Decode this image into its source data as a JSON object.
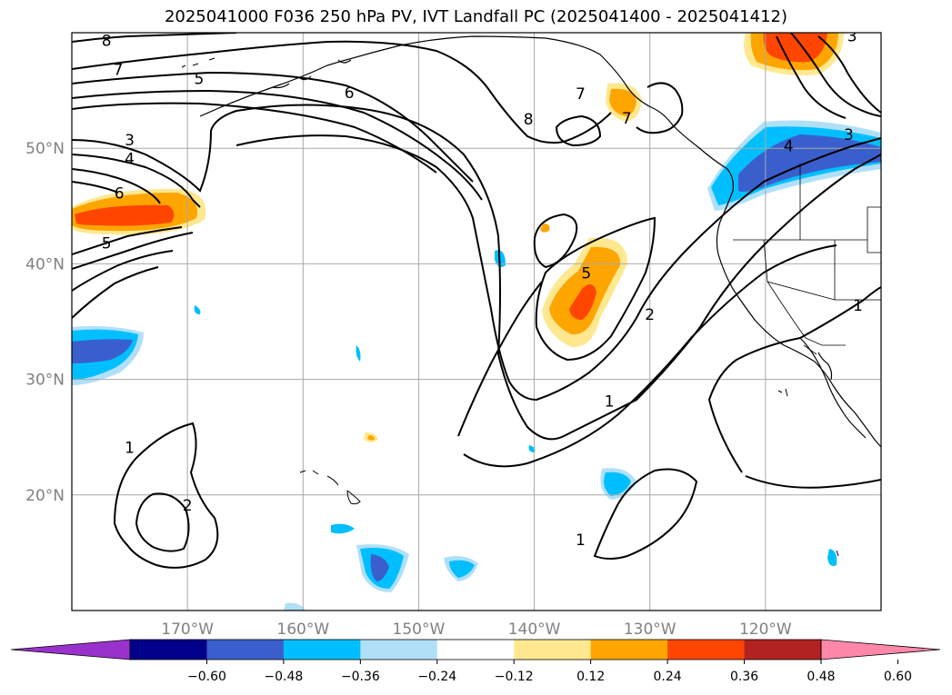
{
  "title": "2025041000 F036 250 hPa PV, IVT Landfall PC (2025041400 - 2025041412)",
  "map": {
    "projection": "plate-carree",
    "lon_range": [
      -180,
      -110
    ],
    "lat_range": [
      10,
      60
    ],
    "gridlines": true,
    "lon_labels": [
      "170°W",
      "160°W",
      "150°W",
      "140°W",
      "130°W",
      "120°W"
    ],
    "lat_labels": [
      "50°N",
      "40°N",
      "30°N",
      "20°N"
    ],
    "label_color": "#808080"
  },
  "contours": {
    "field": "250 hPa PV",
    "color": "#000000",
    "labels": [
      {
        "text": "8",
        "lon": -177,
        "lat": 59
      },
      {
        "text": "7",
        "lon": -176,
        "lat": 56.5
      },
      {
        "text": "5",
        "lon": -169,
        "lat": 55.7
      },
      {
        "text": "6",
        "lon": -156,
        "lat": 54.5
      },
      {
        "text": "8",
        "lon": -140.5,
        "lat": 52.2
      },
      {
        "text": "7",
        "lon": -132,
        "lat": 52.3
      },
      {
        "text": "7",
        "lon": -136,
        "lat": 54.4
      },
      {
        "text": "3",
        "lon": -175,
        "lat": 50.4
      },
      {
        "text": "4",
        "lon": -175,
        "lat": 48.8
      },
      {
        "text": "6",
        "lon": -175.9,
        "lat": 45.8
      },
      {
        "text": "5",
        "lon": -177,
        "lat": 41.5
      },
      {
        "text": "5",
        "lon": -135.5,
        "lat": 38.9
      },
      {
        "text": "2",
        "lon": -130,
        "lat": 35.3
      },
      {
        "text": "1",
        "lon": -133.5,
        "lat": 27.8
      },
      {
        "text": "1",
        "lon": -175,
        "lat": 23.8
      },
      {
        "text": "2",
        "lon": -170,
        "lat": 18.8
      },
      {
        "text": "1",
        "lon": -136,
        "lat": 15.8
      },
      {
        "text": "4",
        "lon": -118,
        "lat": 49.9
      },
      {
        "text": "3",
        "lon": -112.8,
        "lat": 50.9
      },
      {
        "text": "3",
        "lon": -112.5,
        "lat": 59.4
      },
      {
        "text": "1",
        "lon": -112,
        "lat": 36.1
      }
    ]
  },
  "shading": {
    "field": "IVT Landfall PC",
    "colorbar": {
      "ticks": [
        "−0.60",
        "−0.48",
        "−0.36",
        "−0.24",
        "−0.12",
        "0.12",
        "0.24",
        "0.36",
        "0.48",
        "0.60"
      ],
      "colors": [
        "#9932cc",
        "#00008b",
        "#3a5fcd",
        "#00bfff",
        "#b0e0f8",
        "#ffffff",
        "#ffe890",
        "#ffa500",
        "#ff4500",
        "#b22222",
        "#ff88aa"
      ]
    }
  }
}
